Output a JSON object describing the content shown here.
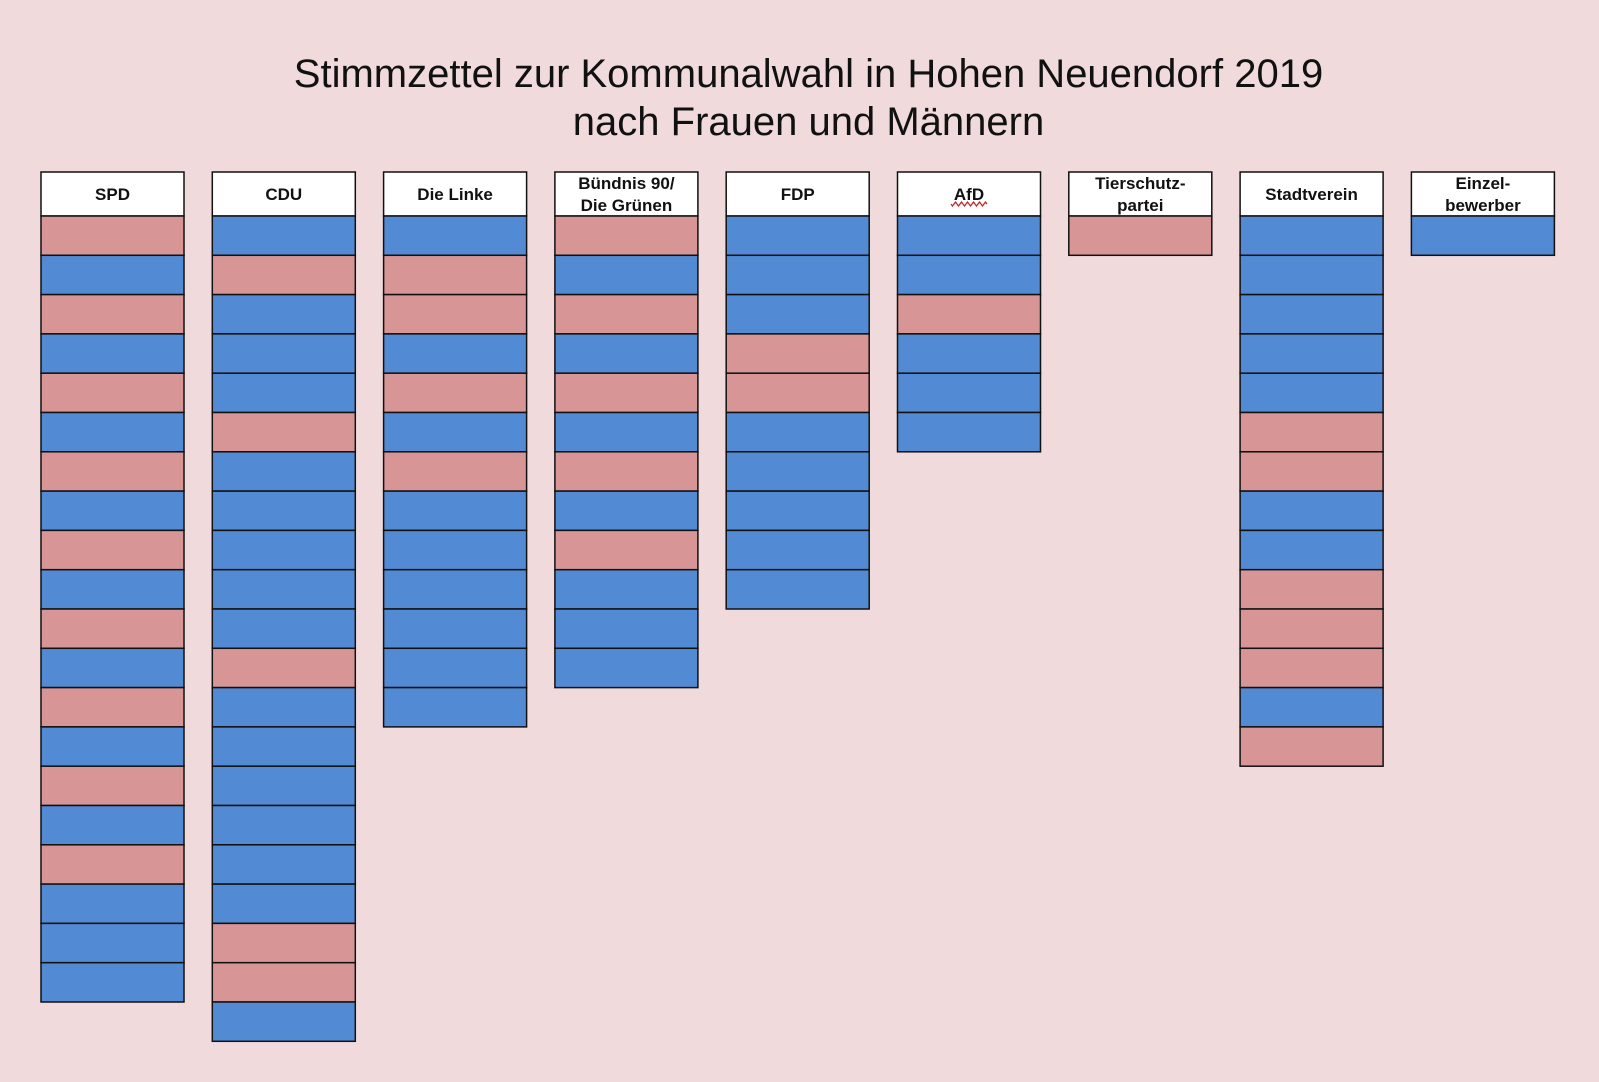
{
  "chart_data": {
    "type": "table",
    "title": [
      "Stimmzettel zur Kommunalwahl in Hohen Neuendorf 2019",
      "nach Frauen und Männern"
    ],
    "colors": {
      "background": "#f0dadb",
      "frau": "#d89595",
      "mann": "#528bd4",
      "header": "#ffffff",
      "border": "#111111"
    },
    "parties": [
      {
        "name": [
          "SPD"
        ],
        "candidates": [
          "f",
          "m",
          "f",
          "m",
          "f",
          "m",
          "f",
          "m",
          "f",
          "m",
          "f",
          "m",
          "f",
          "m",
          "f",
          "m",
          "f",
          "m",
          "m",
          "m"
        ]
      },
      {
        "name": [
          "CDU"
        ],
        "candidates": [
          "m",
          "f",
          "m",
          "m",
          "m",
          "f",
          "m",
          "m",
          "m",
          "m",
          "m",
          "f",
          "m",
          "m",
          "m",
          "m",
          "m",
          "m",
          "f",
          "f",
          "m"
        ]
      },
      {
        "name": [
          "Die Linke"
        ],
        "candidates": [
          "m",
          "f",
          "f",
          "m",
          "f",
          "m",
          "f",
          "m",
          "m",
          "m",
          "m",
          "m",
          "m"
        ]
      },
      {
        "name": [
          "Bündnis 90/",
          "Die Grünen"
        ],
        "candidates": [
          "f",
          "m",
          "f",
          "m",
          "f",
          "m",
          "f",
          "m",
          "f",
          "m",
          "m",
          "m"
        ]
      },
      {
        "name": [
          "FDP"
        ],
        "candidates": [
          "m",
          "m",
          "m",
          "f",
          "f",
          "m",
          "m",
          "m",
          "m",
          "m"
        ]
      },
      {
        "name": [
          "AfD"
        ],
        "candidates": [
          "m",
          "m",
          "f",
          "m",
          "m",
          "m"
        ],
        "spellcheck_underline": true
      },
      {
        "name": [
          "Tierschutz-",
          "partei"
        ],
        "candidates": [
          "f"
        ]
      },
      {
        "name": [
          "Stadtverein"
        ],
        "candidates": [
          "m",
          "m",
          "m",
          "m",
          "m",
          "f",
          "f",
          "m",
          "m",
          "f",
          "f",
          "f",
          "m",
          "f"
        ]
      },
      {
        "name": [
          "Einzel-",
          "bewerber"
        ],
        "candidates": [
          "m"
        ]
      }
    ]
  }
}
